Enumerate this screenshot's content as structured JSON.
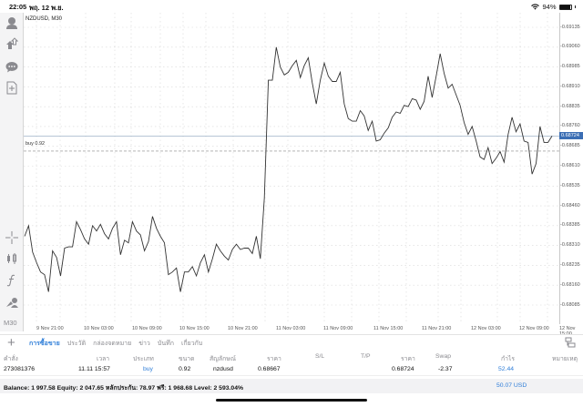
{
  "status_bar": {
    "time": "22:05",
    "date": "พฤ. 12 พ.ย.",
    "wifi_icon": "wifi-icon",
    "battery_percent": "94%"
  },
  "sidebar": {
    "items": [
      {
        "icon": "account-icon"
      },
      {
        "icon": "trade-icon"
      },
      {
        "icon": "chat-icon"
      },
      {
        "icon": "new-document-icon"
      },
      {
        "icon": "crosshair-icon"
      },
      {
        "icon": "indicators-icon"
      },
      {
        "icon": "function-icon"
      },
      {
        "icon": "objects-icon"
      }
    ],
    "timeframe": "M30"
  },
  "chart": {
    "symbol_title": "NZDUSD, M30",
    "buy_line_label": "buy 0.92",
    "current_price": "0.68724",
    "colors": {
      "line": "#333333",
      "price_line": "#9fb3c8",
      "price_tag": "#3b6eb4",
      "buy_line": "#888888",
      "grid": "#d8d8d8"
    }
  },
  "chart_data": {
    "type": "line",
    "title": "NZDUSD, M30",
    "xlabel": "",
    "ylabel": "",
    "x_ticks": [
      "9 Nov 21:00",
      "10 Nov 03:00",
      "10 Nov 09:00",
      "10 Nov 15:00",
      "10 Nov 21:00",
      "11 Nov 03:00",
      "11 Nov 09:00",
      "11 Nov 15:00",
      "11 Nov 21:00",
      "12 Nov 03:00",
      "12 Nov 09:00",
      "12 Nov 15:00"
    ],
    "y_ticks": [
      "0.69135",
      "0.69060",
      "0.68985",
      "0.68910",
      "0.68835",
      "0.68760",
      "0.68685",
      "0.68610",
      "0.68535",
      "0.68460",
      "0.68385",
      "0.68310",
      "0.68235",
      "0.68160",
      "0.68085"
    ],
    "ylim": [
      0.6806,
      0.6916
    ],
    "grid": true,
    "current_price": 0.68724,
    "buy_level": 0.68667,
    "series": [
      {
        "name": "NZDUSD M30 close",
        "values": [
          0.68345,
          0.68385,
          0.68285,
          0.68245,
          0.6821,
          0.682,
          0.68135,
          0.6829,
          0.68265,
          0.68195,
          0.683,
          0.68305,
          0.68305,
          0.684,
          0.6837,
          0.68335,
          0.68315,
          0.68385,
          0.68365,
          0.6839,
          0.68355,
          0.68335,
          0.68375,
          0.684,
          0.68275,
          0.6833,
          0.6832,
          0.684,
          0.68365,
          0.6835,
          0.6829,
          0.68325,
          0.6842,
          0.68375,
          0.68345,
          0.6832,
          0.682,
          0.6821,
          0.68225,
          0.68135,
          0.6821,
          0.6821,
          0.6823,
          0.68195,
          0.68245,
          0.68275,
          0.6821,
          0.6826,
          0.68315,
          0.6829,
          0.6827,
          0.68255,
          0.68295,
          0.68315,
          0.68295,
          0.683,
          0.683,
          0.6828,
          0.68345,
          0.6826,
          0.6849,
          0.68935,
          0.68935,
          0.6906,
          0.68985,
          0.68955,
          0.68965,
          0.6899,
          0.6901,
          0.68945,
          0.6899,
          0.6902,
          0.68925,
          0.68845,
          0.68935,
          0.69,
          0.6895,
          0.6893,
          0.6893,
          0.68965,
          0.68845,
          0.6879,
          0.6878,
          0.6878,
          0.6882,
          0.688,
          0.68745,
          0.6878,
          0.68705,
          0.6871,
          0.68735,
          0.68755,
          0.68795,
          0.68815,
          0.6881,
          0.6884,
          0.68835,
          0.68865,
          0.6886,
          0.68825,
          0.68855,
          0.6895,
          0.6887,
          0.6895,
          0.69035,
          0.6896,
          0.68905,
          0.6892,
          0.6888,
          0.6884,
          0.68775,
          0.6873,
          0.6876,
          0.68705,
          0.68645,
          0.68635,
          0.6868,
          0.6862,
          0.6864,
          0.68665,
          0.68625,
          0.6873,
          0.68795,
          0.6874,
          0.6877,
          0.68705,
          0.687,
          0.6858,
          0.6862,
          0.6876,
          0.687,
          0.687,
          0.68724
        ]
      }
    ]
  },
  "toolbar": {
    "add_icon": "plus-icon",
    "tabs": [
      "การซื้อขาย",
      "ประวัติ",
      "กล่องจดหมาย",
      "ข่าว",
      "บันทึก",
      "เกี่ยวกับ"
    ],
    "active_tab_index": 0,
    "dock_icon": "window-dock-icon"
  },
  "trades_table": {
    "columns": [
      "คำสั่ง",
      "เวลา",
      "ประเภท",
      "ขนาด",
      "สัญลักษณ์",
      "ราคา",
      "S/L",
      "T/P",
      "ราคา",
      "Swap",
      "กำไร",
      "หมายเหตุ"
    ],
    "rows": [
      {
        "order": "273081376",
        "time": "11.11 15:57",
        "type": "buy",
        "size": "0.92",
        "symbol": "nzdusd",
        "open_price": "0.68667",
        "sl": "",
        "tp": "",
        "price": "0.68724",
        "swap": "-2.37",
        "profit": "52.44",
        "comment": ""
      }
    ]
  },
  "footer": {
    "summary": "Balance: 1 997.58 Equity: 2 047.65 หลักประกัน: 78.97 ฟรี: 1 968.68 Level: 2 593.04%",
    "total_profit": "50.07  USD"
  }
}
